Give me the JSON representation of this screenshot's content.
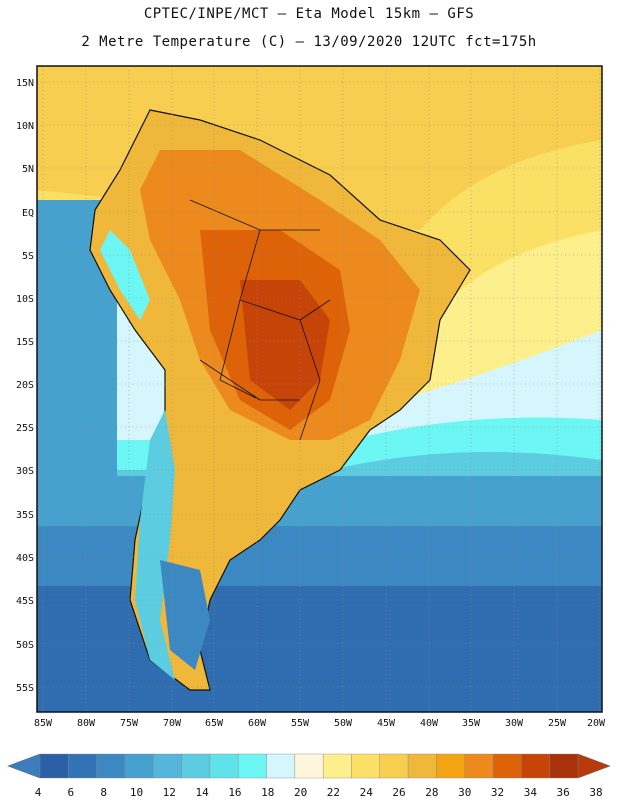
{
  "title_line1": "CPTEC/INPE/MCT –  Eta Model 15km – GFS",
  "title_line2": "2 Metre Temperature (C) – 13/09/2020 12UTC fct=175h",
  "lat_labels": [
    "15N",
    "10N",
    "5N",
    "EQ",
    "5S",
    "10S",
    "15S",
    "20S",
    "25S",
    "30S",
    "35S",
    "40S",
    "45S",
    "50S",
    "55S"
  ],
  "lon_labels": [
    "85W",
    "80W",
    "75W",
    "70W",
    "65W",
    "60W",
    "55W",
    "50W",
    "45W",
    "40W",
    "35W",
    "30W",
    "25W",
    "20W"
  ],
  "colorbar": {
    "labels": [
      "4",
      "6",
      "8",
      "10",
      "12",
      "14",
      "16",
      "18",
      "20",
      "22",
      "24",
      "26",
      "28",
      "30",
      "32",
      "34",
      "36",
      "38"
    ],
    "colors": [
      "#2b5fa6",
      "#3173b4",
      "#3b88c2",
      "#47a1cf",
      "#56b5da",
      "#5ccde0",
      "#60e2ea",
      "#6cf6f4",
      "#d4f6fc",
      "#fff6dc",
      "#fdf08c",
      "#fbe066",
      "#f7ce50",
      "#f0b83a",
      "#f2a412",
      "#ec8a1e",
      "#dd6208",
      "#c74408",
      "#a8320a"
    ],
    "low_color": "#3d7dbf",
    "high_color": "#b83a0c"
  },
  "icons": {
    "left_arrow": "colorbar-left-triangle",
    "right_arrow": "colorbar-right-triangle"
  }
}
